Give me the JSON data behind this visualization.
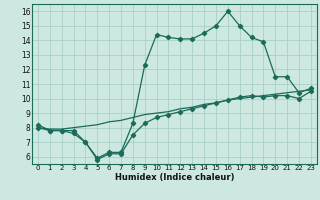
{
  "xlabel": "Humidex (Indice chaleur)",
  "bg_color": "#cce8e0",
  "line_color": "#1a6b5a",
  "grid_color": "#aacfc8",
  "xlim": [
    -0.5,
    23.5
  ],
  "ylim": [
    5.5,
    16.5
  ],
  "x_ticks": [
    0,
    1,
    2,
    3,
    4,
    5,
    6,
    7,
    8,
    9,
    10,
    11,
    12,
    13,
    14,
    15,
    16,
    17,
    18,
    19,
    20,
    21,
    22,
    23
  ],
  "y_ticks": [
    6,
    7,
    8,
    9,
    10,
    11,
    12,
    13,
    14,
    15,
    16
  ],
  "line_max_x": [
    0,
    1,
    2,
    3,
    4,
    5,
    6,
    7,
    8,
    9,
    10,
    11,
    12,
    13,
    14,
    15,
    16,
    17,
    18,
    19,
    20,
    21,
    22,
    23
  ],
  "line_max_y": [
    8.2,
    7.8,
    7.8,
    7.8,
    7.0,
    5.9,
    6.3,
    6.3,
    8.3,
    12.3,
    14.4,
    14.2,
    14.1,
    14.1,
    14.5,
    15.0,
    16.0,
    15.0,
    14.2,
    13.9,
    11.5,
    11.5,
    10.4,
    10.7
  ],
  "line_mid_x": [
    0,
    1,
    2,
    3,
    4,
    5,
    6,
    7,
    8,
    9,
    10,
    11,
    12,
    13,
    14,
    15,
    16,
    17,
    18,
    19,
    20,
    21,
    22,
    23
  ],
  "line_mid_y": [
    8.0,
    7.9,
    7.9,
    8.0,
    8.1,
    8.2,
    8.4,
    8.5,
    8.7,
    8.9,
    9.0,
    9.1,
    9.3,
    9.4,
    9.6,
    9.7,
    9.9,
    10.0,
    10.1,
    10.2,
    10.3,
    10.4,
    10.5,
    10.6
  ],
  "line_min_x": [
    0,
    1,
    2,
    3,
    4,
    5,
    6,
    7,
    8,
    9,
    10,
    11,
    12,
    13,
    14,
    15,
    16,
    17,
    18,
    19,
    20,
    21,
    22,
    23
  ],
  "line_min_y": [
    8.0,
    7.8,
    7.8,
    7.6,
    7.0,
    5.8,
    6.2,
    6.2,
    7.5,
    8.3,
    8.7,
    8.9,
    9.1,
    9.3,
    9.5,
    9.7,
    9.9,
    10.1,
    10.2,
    10.1,
    10.2,
    10.2,
    10.0,
    10.5
  ]
}
